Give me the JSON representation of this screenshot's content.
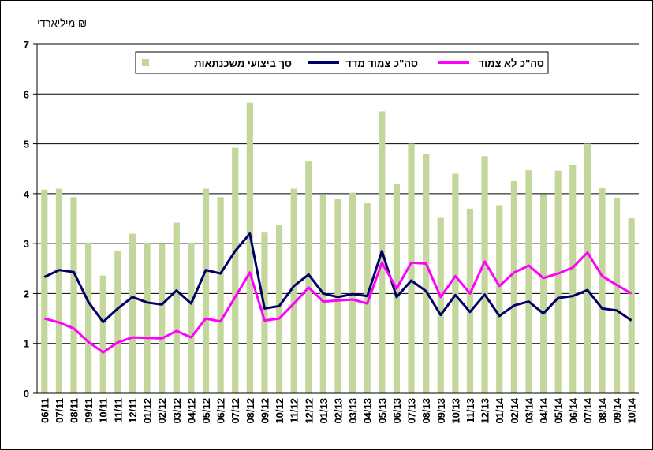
{
  "chart_data": {
    "type": "bar",
    "y_label": "מיליארדי ₪",
    "categories": [
      "06/11",
      "07/11",
      "08/11",
      "09/11",
      "10/11",
      "11/11",
      "12/11",
      "01/12",
      "02/12",
      "03/12",
      "04/12",
      "05/12",
      "06/12",
      "07/12",
      "08/12",
      "09/12",
      "10/12",
      "11/12",
      "12/12",
      "01/13",
      "02/13",
      "03/13",
      "04/13",
      "05/13",
      "06/13",
      "07/13",
      "08/13",
      "09/13",
      "10/13",
      "11/13",
      "12/13",
      "01/14",
      "02/14",
      "03/14",
      "04/14",
      "05/14",
      "06/14",
      "07/14",
      "08/14",
      "09/14",
      "10/14"
    ],
    "series": [
      {
        "name": "סך ביצועי משכנתאות",
        "type": "bar",
        "color": "#c3d69b",
        "values": [
          4.08,
          4.1,
          3.93,
          3.02,
          2.36,
          2.86,
          3.2,
          3.02,
          3.0,
          3.42,
          3.02,
          4.1,
          3.93,
          4.92,
          5.82,
          3.22,
          3.37,
          4.1,
          4.66,
          3.97,
          3.9,
          4.02,
          3.82,
          5.65,
          4.2,
          5.0,
          4.8,
          3.53,
          4.4,
          3.7,
          4.75,
          3.77,
          4.25,
          4.47,
          3.99,
          4.46,
          4.58,
          5.0,
          4.12,
          3.92,
          3.52
        ]
      },
      {
        "name": "סה\"כ צמוד מדד",
        "type": "line",
        "color": "#000066",
        "values": [
          2.33,
          2.47,
          2.43,
          1.83,
          1.43,
          1.7,
          1.93,
          1.82,
          1.78,
          2.06,
          1.8,
          2.47,
          2.4,
          2.85,
          3.2,
          1.7,
          1.75,
          2.15,
          2.38,
          2.0,
          1.93,
          1.99,
          1.95,
          2.85,
          1.93,
          2.26,
          2.05,
          1.57,
          1.97,
          1.63,
          1.98,
          1.55,
          1.76,
          1.84,
          1.6,
          1.91,
          1.95,
          2.07,
          1.7,
          1.66,
          1.46
        ]
      },
      {
        "name": "סה\"כ לא צמוד",
        "type": "line",
        "color": "#ff00ff",
        "values": [
          1.5,
          1.42,
          1.3,
          1.03,
          0.82,
          1.02,
          1.12,
          1.11,
          1.1,
          1.25,
          1.12,
          1.5,
          1.44,
          1.93,
          2.42,
          1.46,
          1.5,
          1.8,
          2.12,
          1.84,
          1.86,
          1.88,
          1.8,
          2.62,
          2.1,
          2.62,
          2.6,
          1.93,
          2.35,
          2.0,
          2.64,
          2.15,
          2.42,
          2.56,
          2.31,
          2.4,
          2.52,
          2.82,
          2.35,
          2.17,
          2.0
        ]
      }
    ],
    "ylim": [
      0,
      7
    ],
    "yticks": [
      0,
      1,
      2,
      3,
      4,
      5,
      6,
      7
    ],
    "grid": true
  }
}
